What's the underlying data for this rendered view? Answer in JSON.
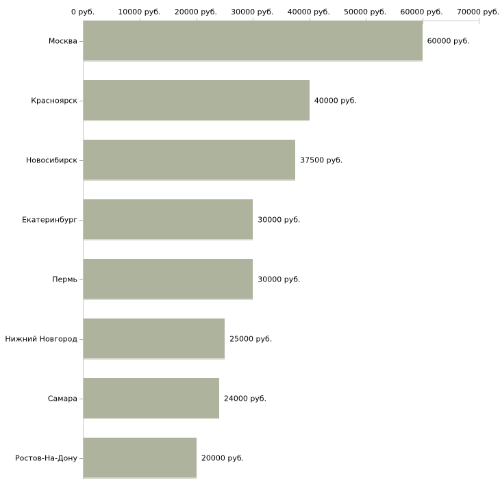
{
  "chart_data": {
    "type": "bar",
    "orientation": "horizontal",
    "title": "",
    "unit": "руб.",
    "categories": [
      "Москва",
      "Красноярск",
      "Новосибирск",
      "Екатеринбург",
      "Пермь",
      "Нижний Новгород",
      "Самара",
      "Ростов-На-Дону"
    ],
    "values": [
      60000,
      40000,
      37500,
      30000,
      30000,
      25000,
      24000,
      20000
    ],
    "value_labels": [
      "60000 руб.",
      "40000 руб.",
      "37500 руб.",
      "30000 руб.",
      "30000 руб.",
      "25000 руб.",
      "24000 руб.",
      "20000 руб."
    ],
    "x_tick_values": [
      0,
      10000,
      20000,
      30000,
      40000,
      50000,
      60000,
      70000
    ],
    "x_tick_labels": [
      "0 руб.",
      "10000 руб.",
      "20000 руб.",
      "30000 руб.",
      "40000 руб.",
      "50000 руб.",
      "60000 руб.",
      "70000 руб."
    ],
    "xlim": [
      0,
      70000
    ],
    "grid": "off",
    "legend": "none",
    "colors": {
      "bar_fill": "#adb39c",
      "bar_bottom_edge": "#d7d9cd",
      "axis_line": "#c8c8c8",
      "axis_tick": "#c4c4aa",
      "category_tick": "#a6a69a",
      "text": "#000000",
      "background": "#ffffff"
    }
  }
}
